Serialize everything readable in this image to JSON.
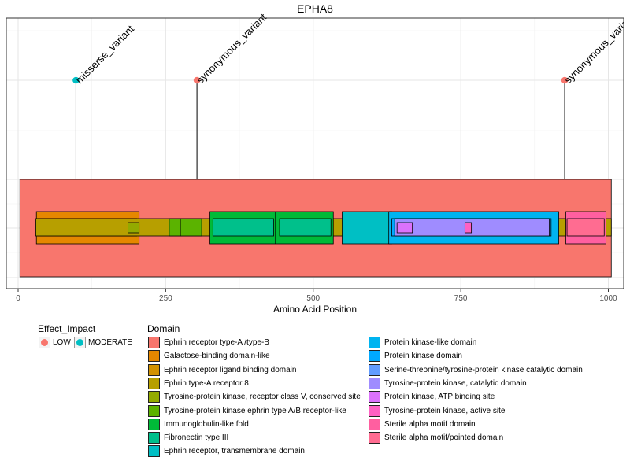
{
  "chart_data": {
    "type": "lollipop",
    "title": "EPHA8",
    "xlabel": "Amino Acid Position",
    "ylabel": "",
    "xlim": [
      -20,
      1026
    ],
    "x_ticks": [
      0,
      250,
      500,
      750,
      1000
    ],
    "grid": true,
    "legend_position": "bottom",
    "variants": [
      {
        "position": 98,
        "label": "misserse_variant",
        "impact": "MODERATE"
      },
      {
        "position": 303,
        "label": "synonymous_variant",
        "impact": "LOW"
      },
      {
        "position": 926,
        "label": "synonymous_variant",
        "impact": "LOW"
      }
    ],
    "domains": [
      {
        "name": "Ephrin receptor type-A /type-B",
        "color": "#F8766D",
        "tier": 1,
        "segments": [
          [
            3,
            1005
          ]
        ]
      },
      {
        "name": "Galactose-binding domain-like",
        "color": "#E58700",
        "tier": 2,
        "segments": [
          [
            31,
            205
          ]
        ]
      },
      {
        "name": "Ephrin receptor ligand binding domain",
        "color": "#D39200",
        "tier": 3,
        "segments": [
          [
            33,
            201
          ]
        ]
      },
      {
        "name": "Ephrin type-A receptor 8",
        "color": "#B79F00",
        "tier": 3,
        "segments": [
          [
            30,
            1005
          ]
        ]
      },
      {
        "name": "Tyrosine-protein kinase, receptor class V, conserved site",
        "color": "#93AA00",
        "tier": 4,
        "segments": [
          [
            186,
            205
          ]
        ]
      },
      {
        "name": "Tyrosine-protein kinase ephrin type A/B receptor-like",
        "color": "#5BB300",
        "tier": 3,
        "segments": [
          [
            256,
            276
          ],
          [
            275,
            311
          ]
        ]
      },
      {
        "name": "Immunoglobulin-like fold",
        "color": "#00BA38",
        "tier": 2,
        "segments": [
          [
            325,
            436
          ],
          [
            437,
            534
          ]
        ]
      },
      {
        "name": "Fibronectin type III",
        "color": "#00C08B",
        "tier": 3,
        "segments": [
          [
            330,
            433
          ],
          [
            443,
            530
          ]
        ]
      },
      {
        "name": "Ephrin receptor, transmembrane domain",
        "color": "#00BFC4",
        "tier": 2,
        "segments": [
          [
            549,
            633
          ]
        ]
      },
      {
        "name": "Protein kinase-like domain",
        "color": "#00B4F0",
        "tier": 2,
        "segments": [
          [
            628,
            916
          ]
        ]
      },
      {
        "name": "Protein kinase domain",
        "color": "#00A9FF",
        "tier": 3,
        "segments": [
          [
            633,
            903
          ]
        ]
      },
      {
        "name": "Serine-threonine/tyrosine-protein kinase catalytic domain",
        "color": "#619CFF",
        "tier": 4,
        "segments": [
          [
            713,
            727
          ],
          [
            753,
            767
          ],
          [
            801,
            810
          ],
          [
            822,
            842
          ],
          [
            865,
            885
          ]
        ]
      },
      {
        "name": "Tyrosine-protein kinase, catalytic domain",
        "color": "#9F8CFF",
        "tier": 3,
        "segments": [
          [
            638,
            900
          ]
        ]
      },
      {
        "name": "Protein kinase, ATP binding site",
        "color": "#DB72FB",
        "tier": 4,
        "segments": [
          [
            642,
            668
          ]
        ]
      },
      {
        "name": "Tyrosine-protein kinase, active site",
        "color": "#FF61C3",
        "tier": 4,
        "segments": [
          [
            757,
            768
          ]
        ]
      },
      {
        "name": "Sterile alpha motif domain",
        "color": "#FF5FA0",
        "tier": 2,
        "segments": [
          [
            928,
            996
          ]
        ]
      },
      {
        "name": "Sterile alpha motif/pointed domain",
        "color": "#FF6C91",
        "tier": 3,
        "segments": [
          [
            930,
            993
          ]
        ]
      }
    ]
  },
  "legend": {
    "effect_title": "Effect_Impact",
    "effect_items": [
      {
        "label": "LOW",
        "color": "#F8766D"
      },
      {
        "label": "MODERATE",
        "color": "#00BFC4"
      }
    ],
    "domain_title": "Domain"
  }
}
